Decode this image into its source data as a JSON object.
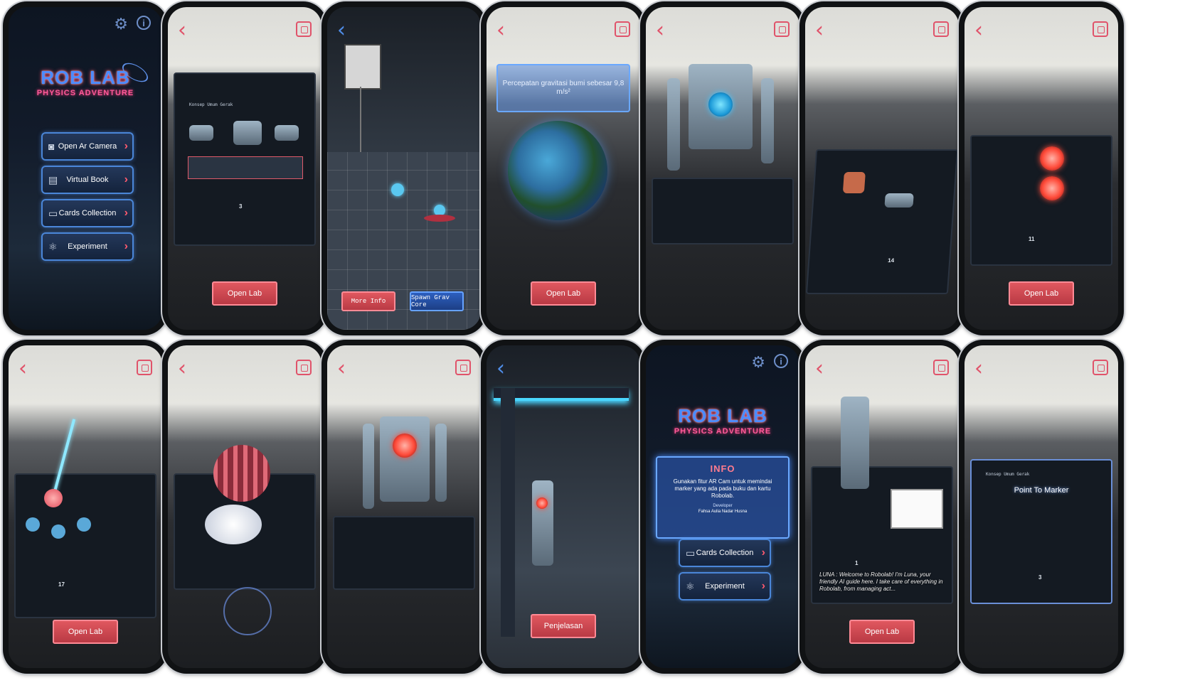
{
  "row1": {
    "phone1": {
      "logo_main": "ROB LAB",
      "logo_sub": "PHYSICS ADVENTURE",
      "menu": [
        {
          "label": "Open Ar Camera"
        },
        {
          "label": "Virtual Book"
        },
        {
          "label": "Cards Collection"
        },
        {
          "label": "Experiment"
        }
      ]
    },
    "phone2": {
      "page_title": "Konsep Umum Gerak",
      "page_number": "3",
      "button": "Open Lab"
    },
    "phone3": {
      "btn_left": "More Info",
      "btn_right": "Spawn Grav Core"
    },
    "phone4": {
      "gravity_text": "Percepatan gravitasi bumi sebesar 9,8 m/s²",
      "button": "Open Lab"
    },
    "phone5": {},
    "phone6": {
      "page_number": "14"
    },
    "phone7": {
      "page_number": "11",
      "button": "Open Lab"
    }
  },
  "row2": {
    "phone8": {
      "page_number": "17",
      "button": "Open Lab"
    },
    "phone9": {},
    "phone10": {},
    "phone11": {
      "button": "Penjelasan"
    },
    "phone12": {
      "logo_main": "ROB LAB",
      "logo_sub": "PHYSICS ADVENTURE",
      "info_title": "INFO",
      "info_body": "Gunakan fitur AR Cam untuk memindai marker yang ada pada buku dan kartu Robolab.",
      "info_label": "Developer",
      "info_name": "Fahsa Aulia Nadar Husna",
      "menu": [
        {
          "label": "Cards Collection"
        },
        {
          "label": "Experiment"
        }
      ]
    },
    "phone13": {
      "page_number": "1",
      "luna_text": "LUNA : Welcome to Robolab! I'm Luna, your friendly AI guide here. I take care of everything in Robolab, from managing act...",
      "button": "Open Lab"
    },
    "phone14": {
      "page_title": "Konsep Umum Gerak",
      "pointer_label": "Point To Marker",
      "page_number": "3"
    }
  },
  "colors": {
    "accent_red": "#e0536a",
    "accent_blue": "#4f8de8"
  }
}
